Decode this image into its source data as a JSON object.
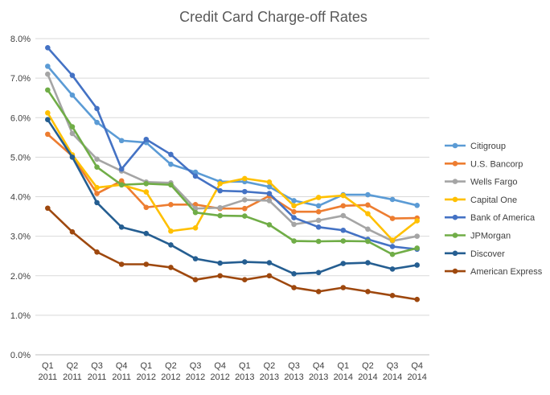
{
  "chart_data": {
    "type": "line",
    "title": "Credit Card Charge-off Rates",
    "xlabel": "",
    "ylabel": "",
    "ylim": [
      0,
      8
    ],
    "y_ticks": [
      "0.0%",
      "1.0%",
      "2.0%",
      "3.0%",
      "4.0%",
      "5.0%",
      "6.0%",
      "7.0%",
      "8.0%"
    ],
    "grid": "horizontal",
    "legend_position": "right",
    "categories": [
      "Q1 2011",
      "Q2 2011",
      "Q3 2011",
      "Q4 2011",
      "Q1 2012",
      "Q2 2012",
      "Q3 2012",
      "Q4 2012",
      "Q1 2013",
      "Q2 2013",
      "Q3 2013",
      "Q4 2013",
      "Q1 2014",
      "Q2 2014",
      "Q3 2014",
      "Q4 2014"
    ],
    "category_lines": [
      [
        "Q1",
        "2011"
      ],
      [
        "Q2",
        "2011"
      ],
      [
        "Q3",
        "2011"
      ],
      [
        "Q4",
        "2011"
      ],
      [
        "Q1",
        "2012"
      ],
      [
        "Q2",
        "2012"
      ],
      [
        "Q3",
        "2012"
      ],
      [
        "Q4",
        "2012"
      ],
      [
        "Q1",
        "2013"
      ],
      [
        "Q2",
        "2013"
      ],
      [
        "Q3",
        "2013"
      ],
      [
        "Q4",
        "2013"
      ],
      [
        "Q1",
        "2014"
      ],
      [
        "Q2",
        "2014"
      ],
      [
        "Q3",
        "2014"
      ],
      [
        "Q4",
        "2014"
      ]
    ],
    "series": [
      {
        "name": "Citigroup",
        "color": "#5B9BD5",
        "values": [
          7.3,
          6.57,
          5.88,
          5.42,
          5.37,
          4.82,
          4.62,
          4.38,
          4.38,
          4.25,
          3.9,
          3.77,
          4.05,
          4.05,
          3.93,
          3.78
        ]
      },
      {
        "name": "U.S. Bancorp",
        "color": "#ED7D31",
        "values": [
          5.58,
          5.03,
          4.08,
          4.4,
          3.73,
          3.8,
          3.8,
          3.7,
          3.7,
          4.02,
          3.62,
          3.62,
          3.77,
          3.79,
          3.45,
          3.46
        ]
      },
      {
        "name": "Wells Fargo",
        "color": "#A5A5A5",
        "values": [
          7.1,
          5.6,
          4.95,
          4.65,
          4.37,
          4.35,
          3.7,
          3.72,
          3.92,
          3.9,
          3.3,
          3.4,
          3.52,
          3.18,
          2.88,
          3.0
        ]
      },
      {
        "name": "Capital One",
        "color": "#FFC000",
        "values": [
          6.12,
          5.06,
          4.23,
          4.3,
          4.12,
          3.13,
          3.21,
          4.33,
          4.46,
          4.37,
          3.77,
          3.98,
          4.03,
          3.57,
          2.9,
          3.39
        ]
      },
      {
        "name": "Bank of America",
        "color": "#4472C4",
        "values": [
          7.77,
          7.07,
          6.23,
          4.7,
          5.45,
          5.07,
          4.52,
          4.15,
          4.13,
          4.08,
          3.47,
          3.23,
          3.15,
          2.92,
          2.74,
          2.67
        ]
      },
      {
        "name": "JPMorgan",
        "color": "#70AD47",
        "values": [
          6.7,
          5.77,
          4.75,
          4.3,
          4.33,
          4.3,
          3.6,
          3.52,
          3.51,
          3.29,
          2.88,
          2.87,
          2.88,
          2.87,
          2.54,
          2.7
        ]
      },
      {
        "name": "Discover",
        "color": "#255E91",
        "values": [
          5.95,
          5.0,
          3.85,
          3.23,
          3.07,
          2.78,
          2.43,
          2.32,
          2.35,
          2.33,
          2.05,
          2.08,
          2.31,
          2.33,
          2.17,
          2.27
        ]
      },
      {
        "name": "American Express",
        "color": "#9E480E",
        "values": [
          3.71,
          3.11,
          2.6,
          2.29,
          2.29,
          2.21,
          1.9,
          2.0,
          1.9,
          2.0,
          1.7,
          1.6,
          1.7,
          1.6,
          1.5,
          1.4
        ]
      }
    ]
  }
}
